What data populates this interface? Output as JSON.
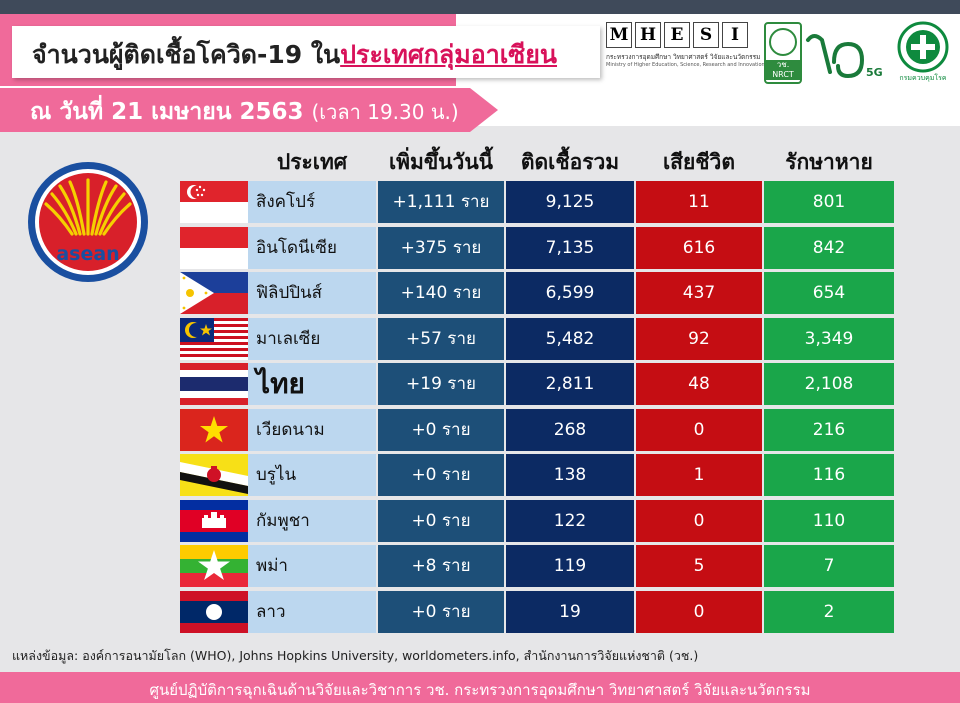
{
  "title": {
    "prefix": "จำนวนผู้ติดเชื้อโควิด-19 ใน",
    "highlight": "ประเทศกลุ่มอาเซียน"
  },
  "date": {
    "text": "ณ วันที่ 21 เมษายน 2563",
    "time": "(เวลา 19.30 น.)"
  },
  "logos": {
    "mhesi_letters": [
      "M",
      "H",
      "E",
      "S",
      "I"
    ],
    "mhesi_sub_th": "กระทรวงการอุดมศึกษา วิทยาศาสตร์ วิจัยและนวัตกรรม",
    "mhesi_sub_en": "Ministry of Higher Education, Science, Research and Innovation",
    "nrct_label": "วช.\nNRCT",
    "logo70_text": "70",
    "logo70_sub": "5G",
    "moph_label": "กรมควบคุมโรค",
    "asean_label": "asean"
  },
  "table": {
    "headers": {
      "country": "ประเทศ",
      "new_today": "เพิ่มขึ้นวันนี้",
      "total": "ติดเชื้อรวม",
      "deaths": "เสียชีวิต",
      "recovered": "รักษาหาย"
    },
    "rows": [
      {
        "flag": "singapore",
        "country": "สิงคโปร์",
        "new_today": "+1,111 ราย",
        "total": "9,125",
        "deaths": "11",
        "recovered": "801"
      },
      {
        "flag": "indonesia",
        "country": "อินโดนีเซีย",
        "new_today": "+375 ราย",
        "total": "7,135",
        "deaths": "616",
        "recovered": "842"
      },
      {
        "flag": "philippines",
        "country": "ฟิลิปปินส์",
        "new_today": "+140 ราย",
        "total": "6,599",
        "deaths": "437",
        "recovered": "654"
      },
      {
        "flag": "malaysia",
        "country": "มาเลเซีย",
        "new_today": "+57 ราย",
        "total": "5,482",
        "deaths": "92",
        "recovered": "3,349"
      },
      {
        "flag": "thailand",
        "country": "ไทย",
        "new_today": "+19 ราย",
        "total": "2,811",
        "deaths": "48",
        "recovered": "2,108"
      },
      {
        "flag": "vietnam",
        "country": "เวียดนาม",
        "new_today": "+0 ราย",
        "total": "268",
        "deaths": "0",
        "recovered": "216"
      },
      {
        "flag": "brunei",
        "country": "บรูไน",
        "new_today": "+0 ราย",
        "total": "138",
        "deaths": "1",
        "recovered": "116"
      },
      {
        "flag": "cambodia",
        "country": "กัมพูชา",
        "new_today": "+0 ราย",
        "total": "122",
        "deaths": "0",
        "recovered": "110"
      },
      {
        "flag": "myanmar",
        "country": "พม่า",
        "new_today": "+8 ราย",
        "total": "119",
        "deaths": "5",
        "recovered": "7"
      },
      {
        "flag": "laos",
        "country": "ลาว",
        "new_today": "+0 ราย",
        "total": "19",
        "deaths": "0",
        "recovered": "2"
      }
    ]
  },
  "source": "แหล่งข้อมูล: องค์การอนามัยโลก (WHO), Johns Hopkins University, worldometers.info, สำนักงานการวิจัยแห่งชาติ (วช.)",
  "footer": "ศูนย์ปฏิบัติการฉุกเฉินด้านวิจัยและวิชาการ   วช.   กระทรวงการอุดมศึกษา วิทยาศาสตร์ วิจัยและนวัตกรรม",
  "colors": {
    "pink": "#f06a9a",
    "name_col": "#bcd7ef",
    "new_col": "#1d4f78",
    "total_col": "#0c2a63",
    "deaths_col": "#c50d13",
    "recovered_col": "#1aa64a"
  }
}
